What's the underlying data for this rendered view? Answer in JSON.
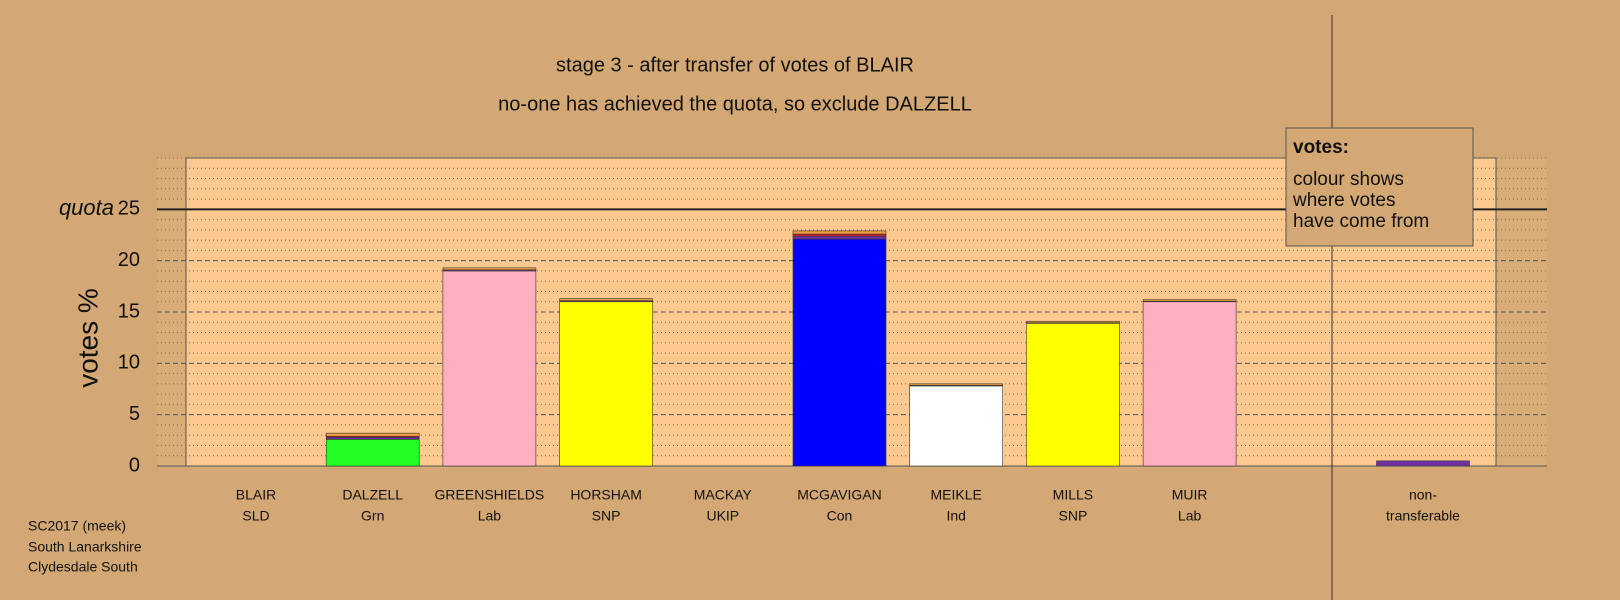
{
  "chart_data": {
    "type": "stacked_bar",
    "title": "stage 3 - after transfer of votes of BLAIR",
    "subtitle": "no-one has achieved the quota, so exclude DALZELL",
    "y_label": "votes %",
    "categories": [
      "BLAIR",
      "DALZELL",
      "GREENSHIELDS",
      "HORSHAM",
      "MACKAY",
      "MCGAVIGAN",
      "MEIKLE",
      "MILLS",
      "MUIR",
      "non-"
    ],
    "subcategories": [
      "SLD",
      "Grn",
      "Lab",
      "SNP",
      "UKIP",
      "Con",
      "Ind",
      "SNP",
      "Lab",
      "transferable"
    ],
    "series": [
      {
        "colors": [
          "#f0a040",
          "#22ff22",
          "#ffb0c0",
          "#ffff00",
          "#7030a0",
          "#0000ff",
          "#ffffff",
          "#ffff00",
          "#ffb0c0",
          "#7030a0"
        ],
        "values": [
          0,
          2.6,
          19.0,
          16.0,
          0,
          22.1,
          7.8,
          13.9,
          16.0,
          0
        ]
      },
      {
        "color": "#7030a0",
        "values": [
          0,
          0.2,
          0.1,
          0.1,
          0,
          0.3,
          0.05,
          0.05,
          0.05,
          0.5
        ]
      },
      {
        "color": "#e02020",
        "values": [
          0,
          0.1,
          0,
          0,
          0,
          0.2,
          0,
          0,
          0,
          0
        ]
      },
      {
        "color": "#f0a040",
        "values": [
          0,
          0.3,
          0.2,
          0.2,
          0,
          0.3,
          0.15,
          0.15,
          0.15,
          0
        ]
      }
    ],
    "ylim": [
      0,
      30
    ],
    "yticks": [
      0,
      5,
      10,
      15,
      20,
      25
    ],
    "grid": true,
    "minor_grid_step": 1,
    "quota": {
      "value": 25,
      "label": "quota"
    },
    "note": {
      "title": "votes:",
      "lines": [
        "colour shows",
        "where votes",
        "have come from"
      ]
    },
    "footer": [
      "SC2017 (meek)",
      "South Lanarkshire",
      "Clydesdale South"
    ]
  }
}
